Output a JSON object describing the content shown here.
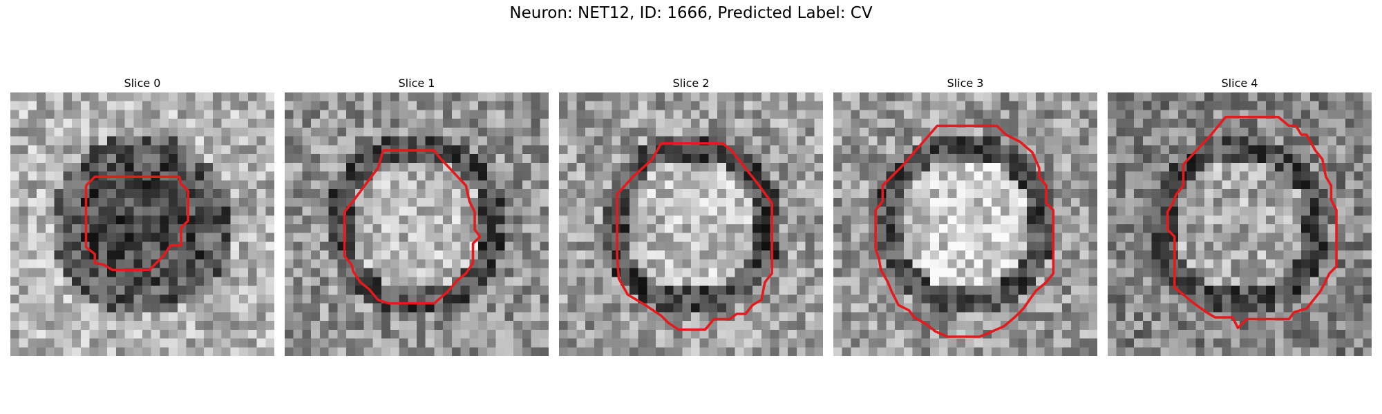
{
  "figure": {
    "title": "Neuron: NET12, ID: 1666, Predicted Label: CV"
  },
  "colors": {
    "contour": "#e41a1c",
    "background": "#ffffff"
  },
  "panels": [
    {
      "title": "Slice 0",
      "center_brightness": 0.28,
      "ring_brightness": 0.35,
      "outside_brightness": 0.7,
      "seed": 11
    },
    {
      "title": "Slice 1",
      "center_brightness": 0.72,
      "ring_brightness": 0.3,
      "outside_brightness": 0.58,
      "seed": 23
    },
    {
      "title": "Slice 2",
      "center_brightness": 0.74,
      "ring_brightness": 0.28,
      "outside_brightness": 0.62,
      "seed": 37
    },
    {
      "title": "Slice 3",
      "center_brightness": 0.8,
      "ring_brightness": 0.3,
      "outside_brightness": 0.6,
      "seed": 41
    },
    {
      "title": "Slice 4",
      "center_brightness": 0.66,
      "ring_brightness": 0.3,
      "outside_brightness": 0.52,
      "seed": 53
    }
  ]
}
